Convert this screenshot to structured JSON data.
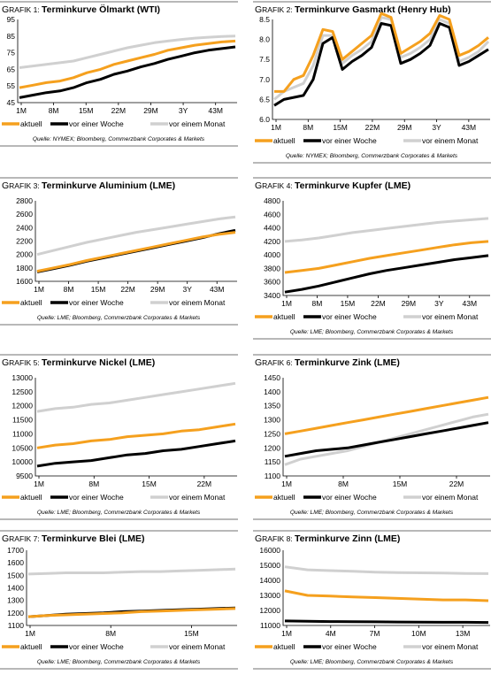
{
  "colors": {
    "aktuell": "#f5a01e",
    "vor_einer_woche": "#000000",
    "vor_einem_monat": "#d0d0d0",
    "rule": "#b8b8b8"
  },
  "legend_labels": [
    "aktuell",
    "vor einer Woche",
    "vor einem Monat"
  ],
  "chart_data": [
    {
      "type": "line",
      "grafik_prefix": "G",
      "grafik_rest": "RAFIK 1:",
      "title": "Terminkurve Ölmarkt (WTI)",
      "x_tick_labels": [
        "1M",
        "8M",
        "15M",
        "22M",
        "29M",
        "3Y",
        "43M"
      ],
      "ylim": [
        45,
        95
      ],
      "y_ticks": [
        45,
        55,
        65,
        75,
        85,
        95
      ],
      "source": "Quelle: NYMEX; Bloomberg, Commerzbank Corporates & Markets",
      "series": [
        {
          "name": "aktuell",
          "values": [
            54,
            55.5,
            57,
            58,
            60,
            63,
            65,
            68,
            70,
            72,
            74,
            76.5,
            78,
            79.5,
            80.5,
            81.5,
            82
          ]
        },
        {
          "name": "vor einer Woche",
          "values": [
            48,
            49.5,
            51,
            52,
            54,
            57,
            59,
            62,
            64,
            66.5,
            68.5,
            71,
            73,
            75,
            76.5,
            77.5,
            78.5
          ]
        },
        {
          "name": "vor einem Monat",
          "values": [
            66,
            67,
            68,
            69,
            70,
            72,
            74,
            76,
            78,
            79.5,
            81,
            82,
            83,
            83.8,
            84.3,
            84.8,
            85
          ]
        }
      ]
    },
    {
      "type": "line",
      "grafik_prefix": "G",
      "grafik_rest": "RAFIK 2:",
      "title": "Terminkurve Gasmarkt (Henry Hub)",
      "x_tick_labels": [
        "1M",
        "8M",
        "15M",
        "22M",
        "29M",
        "3Y",
        "43M"
      ],
      "ylim": [
        6.0,
        8.5
      ],
      "y_ticks": [
        6.0,
        6.5,
        7.0,
        7.5,
        8.0,
        8.5
      ],
      "source": "Quelle: NYMEX; Bloomberg, Commerzbank Corporates & Markets",
      "series": [
        {
          "name": "aktuell",
          "values": [
            6.7,
            6.7,
            7.0,
            7.1,
            7.6,
            8.25,
            8.2,
            7.5,
            7.7,
            7.9,
            8.1,
            8.65,
            8.55,
            7.65,
            7.8,
            7.95,
            8.15,
            8.6,
            8.5,
            7.6,
            7.7,
            7.85,
            8.05
          ]
        },
        {
          "name": "vor einer Woche",
          "values": [
            6.35,
            6.5,
            6.55,
            6.6,
            7.0,
            7.9,
            8.05,
            7.25,
            7.45,
            7.6,
            7.8,
            8.4,
            8.35,
            7.4,
            7.5,
            7.65,
            7.85,
            8.4,
            8.3,
            7.35,
            7.45,
            7.6,
            7.75
          ]
        },
        {
          "name": "vor einem Monat",
          "values": [
            6.5,
            6.7,
            6.8,
            6.9,
            7.35,
            8.1,
            8.1,
            7.4,
            7.6,
            7.75,
            7.95,
            8.55,
            8.5,
            7.55,
            7.65,
            7.8,
            8.0,
            8.5,
            8.4,
            7.45,
            7.55,
            7.7,
            7.95
          ]
        }
      ]
    },
    {
      "type": "line",
      "grafik_prefix": "G",
      "grafik_rest": "RAFIK 3:",
      "title": "Terminkurve Aluminium (LME)",
      "x_tick_labels": [
        "1M",
        "8M",
        "15M",
        "22M",
        "29M",
        "3Y",
        "43M"
      ],
      "ylim": [
        1600,
        2800
      ],
      "y_ticks": [
        1600,
        1800,
        2000,
        2200,
        2400,
        2600,
        2800
      ],
      "source": "Quelle: LME; Bloomberg, Commerzbank Corporates & Markets",
      "series": [
        {
          "name": "aktuell",
          "values": [
            1750,
            1800,
            1850,
            1910,
            1960,
            2010,
            2060,
            2110,
            2160,
            2210,
            2260,
            2300,
            2330
          ]
        },
        {
          "name": "vor einer Woche",
          "values": [
            1740,
            1790,
            1840,
            1900,
            1950,
            2000,
            2050,
            2100,
            2150,
            2200,
            2250,
            2310,
            2360
          ]
        },
        {
          "name": "vor einem Monat",
          "values": [
            2000,
            2060,
            2120,
            2180,
            2230,
            2280,
            2330,
            2370,
            2410,
            2450,
            2490,
            2530,
            2560
          ]
        }
      ]
    },
    {
      "type": "line",
      "grafik_prefix": "G",
      "grafik_rest": "RAFIK 4:",
      "title": "Terminkurve Kupfer (LME)",
      "x_tick_labels": [
        "1M",
        "8M",
        "15M",
        "22M",
        "29M",
        "3Y",
        "43M"
      ],
      "ylim": [
        3400,
        4800
      ],
      "y_ticks": [
        3400,
        3600,
        3800,
        4000,
        4200,
        4400,
        4600,
        4800
      ],
      "source": "Quelle: LME; Bloomberg, Commerzbank Corporates & Markets",
      "series": [
        {
          "name": "aktuell",
          "values": [
            3740,
            3770,
            3800,
            3850,
            3900,
            3950,
            3990,
            4030,
            4070,
            4110,
            4150,
            4180,
            4200
          ]
        },
        {
          "name": "vor einer Woche",
          "values": [
            3450,
            3490,
            3540,
            3600,
            3660,
            3720,
            3770,
            3810,
            3850,
            3890,
            3930,
            3960,
            3990
          ]
        },
        {
          "name": "vor einem Monat",
          "values": [
            4200,
            4220,
            4250,
            4290,
            4330,
            4360,
            4390,
            4420,
            4450,
            4480,
            4500,
            4520,
            4540
          ]
        }
      ]
    },
    {
      "type": "line",
      "grafik_prefix": "G",
      "grafik_rest": "RAFIK 5:",
      "title": "Terminkurve Nickel (LME)",
      "x_tick_labels": [
        "1M",
        "8M",
        "15M",
        "22M"
      ],
      "ylim": [
        9500,
        13000
      ],
      "y_ticks": [
        9500,
        10000,
        10500,
        11000,
        11500,
        12000,
        12500,
        13000
      ],
      "source": "Quelle: LME; Bloomberg, Commerzbank Corporates & Markets",
      "series": [
        {
          "name": "aktuell",
          "values": [
            10500,
            10600,
            10650,
            10750,
            10800,
            10900,
            10950,
            11000,
            11100,
            11150,
            11250,
            11350
          ]
        },
        {
          "name": "vor einer Woche",
          "values": [
            9850,
            9950,
            10000,
            10050,
            10150,
            10250,
            10300,
            10400,
            10450,
            10550,
            10650,
            10750
          ]
        },
        {
          "name": "vor einem Monat",
          "values": [
            11800,
            11900,
            11950,
            12050,
            12100,
            12200,
            12300,
            12400,
            12500,
            12600,
            12700,
            12800
          ]
        }
      ]
    },
    {
      "type": "line",
      "grafik_prefix": "G",
      "grafik_rest": "RAFIK 6:",
      "title": "Terminkurve Zink (LME)",
      "x_tick_labels": [
        "1M",
        "8M",
        "15M",
        "22M"
      ],
      "ylim": [
        1100,
        1450
      ],
      "y_ticks": [
        1100,
        1150,
        1200,
        1250,
        1300,
        1350,
        1400,
        1450
      ],
      "source": "Quelle: LME; Bloomberg, Commerzbank Corporates & Markets",
      "series": [
        {
          "name": "aktuell",
          "values": [
            1250,
            1260,
            1270,
            1280,
            1290,
            1300,
            1310,
            1320,
            1330,
            1340,
            1350,
            1360,
            1370,
            1380
          ]
        },
        {
          "name": "vor einer Woche",
          "values": [
            1170,
            1180,
            1190,
            1195,
            1200,
            1210,
            1220,
            1230,
            1240,
            1250,
            1260,
            1270,
            1280,
            1290
          ]
        },
        {
          "name": "vor einem Monat",
          "values": [
            1140,
            1160,
            1170,
            1180,
            1190,
            1205,
            1220,
            1235,
            1250,
            1265,
            1280,
            1295,
            1310,
            1320
          ]
        }
      ]
    },
    {
      "type": "line",
      "grafik_prefix": "G",
      "grafik_rest": "RAFIK 7:",
      "title": "Terminkurve Blei (LME)",
      "x_tick_labels": [
        "1M",
        "8M",
        "15M"
      ],
      "ylim": [
        1100,
        1700
      ],
      "y_ticks": [
        1100,
        1200,
        1300,
        1400,
        1500,
        1600,
        1700
      ],
      "source": "Quelle: LME; Bloomberg, Commerzbank Corporates & Markets",
      "series": [
        {
          "name": "aktuell",
          "values": [
            1170,
            1180,
            1185,
            1190,
            1195,
            1200,
            1210,
            1215,
            1220,
            1225,
            1230,
            1235
          ]
        },
        {
          "name": "vor einer Woche",
          "values": [
            1170,
            1180,
            1190,
            1195,
            1200,
            1210,
            1215,
            1220,
            1225,
            1230,
            1235,
            1240
          ]
        },
        {
          "name": "vor einem Monat",
          "values": [
            1510,
            1515,
            1520,
            1520,
            1520,
            1525,
            1530,
            1530,
            1535,
            1540,
            1545,
            1550
          ]
        }
      ]
    },
    {
      "type": "line",
      "grafik_prefix": "G",
      "grafik_rest": "RAFIK 8:",
      "title": "Terminkurve Zinn (LME)",
      "x_tick_labels": [
        "1M",
        "4M",
        "7M",
        "10M",
        "13M"
      ],
      "ylim": [
        11000,
        16000
      ],
      "y_ticks": [
        11000,
        12000,
        13000,
        14000,
        15000,
        16000
      ],
      "source": "Quelle: LME; Bloomberg, Commerzbank Corporates & Markets",
      "series": [
        {
          "name": "aktuell",
          "values": [
            13300,
            13000,
            12950,
            12900,
            12850,
            12800,
            12750,
            12700,
            12700,
            12650
          ]
        },
        {
          "name": "vor einer Woche",
          "values": [
            11300,
            11280,
            11260,
            11250,
            11240,
            11230,
            11220,
            11210,
            11210,
            11200
          ]
        },
        {
          "name": "vor einem Monat",
          "values": [
            14900,
            14700,
            14650,
            14600,
            14550,
            14520,
            14500,
            14480,
            14460,
            14450
          ]
        }
      ]
    }
  ]
}
